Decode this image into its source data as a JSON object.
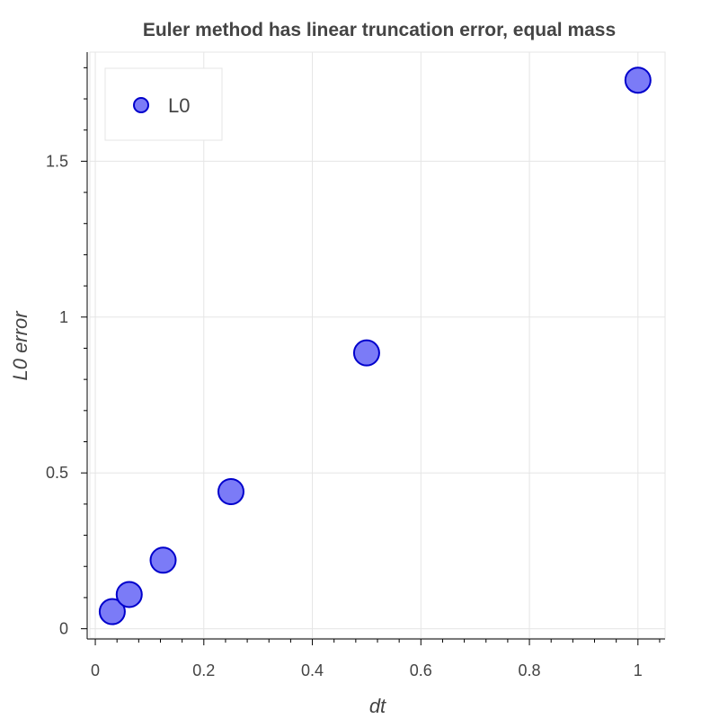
{
  "chart_data": {
    "type": "scatter",
    "title": "Euler method has linear truncation error, equal mass",
    "xlabel": "dt",
    "ylabel": "L0 error",
    "xlim": [
      -0.01,
      1.05
    ],
    "ylim": [
      -0.03,
      1.85
    ],
    "x_ticks": [
      0,
      0.2,
      0.4,
      0.6,
      0.8,
      1
    ],
    "x_tick_labels": [
      "0",
      "0.2",
      "0.4",
      "0.6",
      "0.8",
      "1"
    ],
    "y_ticks": [
      0,
      0.5,
      1,
      1.5
    ],
    "y_tick_labels": [
      "0",
      "0.5",
      "1",
      "1.5"
    ],
    "grid": true,
    "legend_position": "top-left",
    "series": [
      {
        "name": "L0",
        "color": "#7b7bf7",
        "edge_color": "#0000cc",
        "x": [
          0.03125,
          0.0625,
          0.125,
          0.25,
          0.5,
          1.0
        ],
        "y": [
          0.055,
          0.11,
          0.22,
          0.44,
          0.885,
          1.76
        ]
      }
    ]
  }
}
